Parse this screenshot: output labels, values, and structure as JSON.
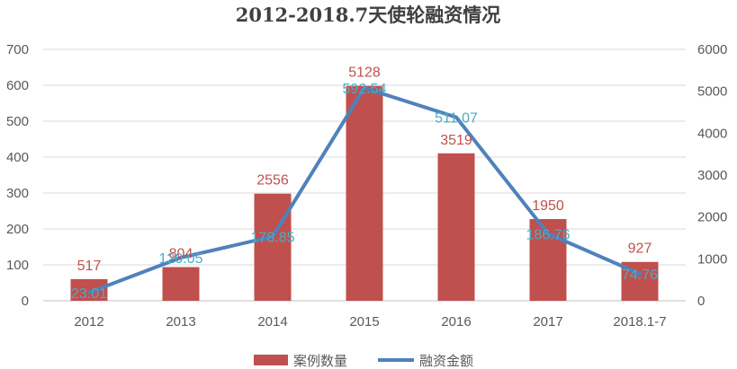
{
  "chart_data": {
    "type": "bar",
    "title": "2012-2018.7天使轮融资情况",
    "categories": [
      "2012",
      "2013",
      "2014",
      "2015",
      "2016",
      "2017",
      "2018.1-7"
    ],
    "series": [
      {
        "name": "案例数量",
        "type": "bar",
        "axis": "right",
        "values": [
          517,
          804,
          2556,
          5128,
          3519,
          1950,
          927
        ],
        "color": "#c0504d"
      },
      {
        "name": "融资金额",
        "type": "line",
        "axis": "left",
        "values": [
          23.01,
          120.05,
          178.85,
          592.54,
          511.07,
          186.76,
          74.76
        ],
        "color": "#4f81bd",
        "label_color": "#4bacc6"
      }
    ],
    "y_left": {
      "ticks": [
        0,
        100,
        200,
        300,
        400,
        500,
        600,
        700
      ],
      "ylim": [
        0,
        700
      ]
    },
    "y_right": {
      "ticks": [
        0,
        1000,
        2000,
        3000,
        4000,
        5000,
        6000
      ],
      "ylim": [
        0,
        6000
      ]
    },
    "grid": true,
    "legend_position": "bottom"
  }
}
